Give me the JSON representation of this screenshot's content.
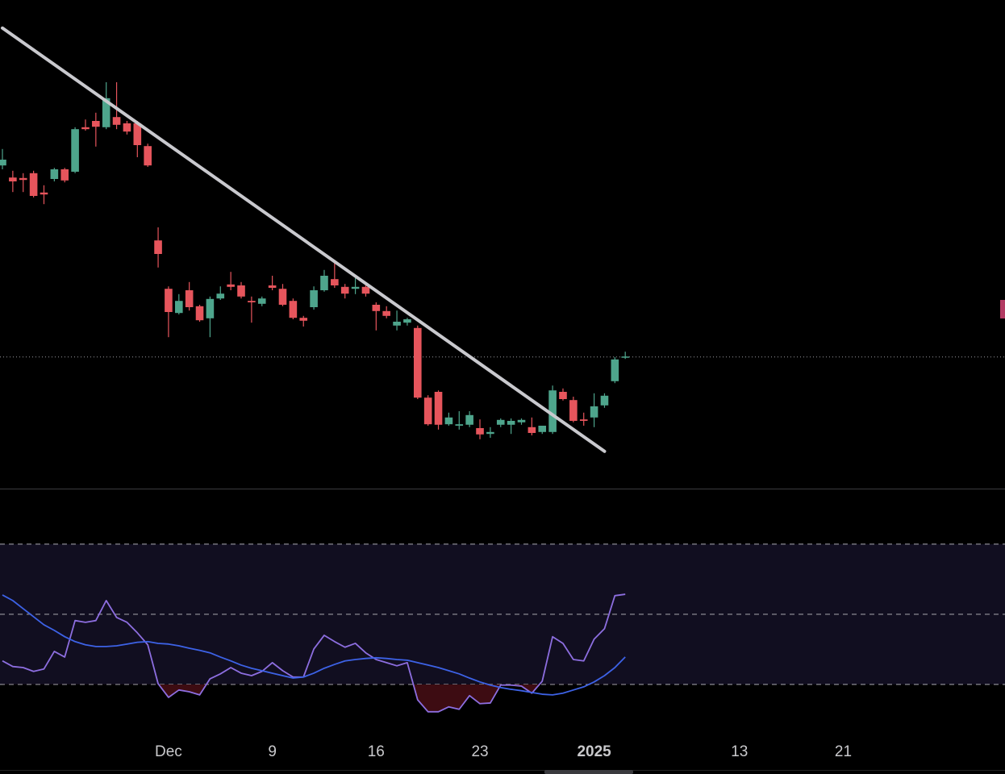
{
  "chart_data": {
    "type": "candlestick",
    "categories": [
      null,
      null,
      null,
      null,
      null,
      null,
      null,
      null,
      null,
      null,
      null,
      null,
      null,
      null,
      null,
      null,
      "Dec",
      null,
      null,
      null,
      null,
      null,
      null,
      null,
      null,
      null,
      "9",
      null,
      null,
      null,
      null,
      null,
      null,
      null,
      null,
      null,
      "16",
      null,
      null,
      null,
      null,
      null,
      null,
      null,
      null,
      null,
      "23",
      null,
      null,
      null,
      null,
      null,
      null,
      null,
      null,
      null,
      null,
      "2025",
      null,
      null,
      null,
      null,
      null,
      null,
      null,
      null,
      null,
      null,
      null,
      null,
      null,
      "13",
      null,
      null,
      null,
      null,
      null,
      null,
      null,
      null,
      null,
      "21"
    ],
    "open": [
      65.8,
      63.3,
      63.2,
      64.2,
      60.2,
      63.0,
      65.0,
      64.5,
      73.7,
      75.0,
      73.7,
      75.8,
      74.5,
      74.5,
      69.8,
      50.3,
      40.3,
      35.3,
      40.0,
      36.7,
      34.2,
      38.3,
      41.2,
      41.0,
      37.8,
      37.2,
      41.0,
      40.3,
      37.8,
      34.3,
      36.5,
      40.0,
      42.3,
      40.7,
      40.3,
      40.7,
      37.0,
      35.7,
      32.7,
      33.3,
      32.2,
      17.8,
      19.0,
      12.3,
      12.0,
      12.2,
      11.5,
      10.3,
      12.2,
      12.2,
      12.7,
      11.7,
      10.7,
      10.7,
      19.0,
      17.3,
      13.3,
      13.7,
      16.2,
      21.2,
      26.2,
      null,
      null,
      null,
      null,
      null,
      null,
      null,
      null,
      null,
      null,
      null,
      null,
      null,
      null,
      null,
      null,
      null,
      null,
      null,
      null,
      null
    ],
    "high": [
      69.2,
      64.7,
      64.2,
      64.7,
      61.7,
      65.3,
      65.3,
      73.7,
      75.3,
      76.7,
      83.0,
      83.0,
      75.0,
      75.0,
      70.3,
      53.0,
      40.8,
      39.2,
      41.7,
      37.0,
      38.7,
      40.8,
      43.8,
      41.7,
      38.7,
      38.7,
      43.0,
      41.3,
      38.3,
      34.7,
      40.8,
      44.2,
      45.8,
      41.3,
      42.5,
      41.7,
      37.5,
      36.7,
      35.8,
      34.3,
      32.7,
      18.3,
      19.3,
      14.7,
      15.0,
      15.0,
      13.3,
      11.7,
      13.5,
      13.5,
      13.5,
      13.7,
      12.0,
      20.3,
      19.7,
      18.0,
      14.7,
      18.7,
      18.7,
      26.2,
      27.3,
      null,
      null,
      null,
      null,
      null,
      null,
      null,
      null,
      null,
      null,
      null,
      null,
      null,
      null,
      null,
      null,
      null,
      null,
      null,
      null,
      null
    ],
    "low": [
      65.0,
      60.3,
      60.3,
      59.2,
      57.8,
      62.5,
      62.3,
      64.2,
      73.0,
      69.7,
      73.3,
      73.3,
      72.2,
      67.5,
      65.5,
      44.7,
      30.3,
      35.0,
      35.8,
      33.5,
      30.3,
      38.0,
      40.0,
      38.3,
      33.3,
      36.7,
      40.0,
      36.7,
      34.0,
      32.5,
      36.0,
      39.7,
      40.5,
      38.3,
      39.2,
      38.7,
      31.7,
      34.2,
      31.7,
      32.7,
      17.5,
      12.0,
      11.2,
      12.0,
      11.2,
      11.7,
      9.2,
      9.5,
      11.7,
      10.3,
      12.2,
      10.0,
      10.3,
      10.3,
      17.2,
      12.7,
      12.0,
      11.7,
      15.7,
      20.8,
      25.8,
      null,
      null,
      null,
      null,
      null,
      null,
      null,
      null,
      null,
      null,
      null,
      null,
      null,
      null,
      null,
      null,
      null,
      null,
      null,
      null,
      null
    ],
    "close": [
      67.0,
      62.5,
      62.8,
      59.5,
      59.8,
      65.0,
      62.7,
      73.3,
      73.3,
      73.8,
      79.7,
      74.2,
      72.8,
      70.0,
      65.8,
      47.5,
      35.5,
      37.8,
      36.5,
      33.8,
      38.2,
      39.3,
      40.7,
      38.7,
      37.5,
      38.3,
      40.5,
      37.0,
      34.3,
      33.7,
      40.0,
      43.0,
      41.0,
      39.3,
      40.7,
      39.3,
      35.7,
      34.7,
      33.5,
      34.0,
      17.8,
      12.3,
      12.2,
      13.7,
      12.3,
      14.2,
      10.2,
      10.7,
      13.2,
      13.0,
      13.2,
      10.5,
      12.0,
      19.3,
      17.5,
      13.0,
      13.0,
      16.0,
      18.2,
      25.7,
      26.3,
      null,
      null,
      null,
      null,
      null,
      null,
      null,
      null,
      null,
      null,
      null,
      null,
      null,
      null,
      null,
      null,
      null,
      null,
      null,
      null,
      null
    ],
    "up_color": "#4ea58c",
    "down_color": "#e6555c",
    "ylim": [
      0,
      100
    ],
    "last_price": 26.2,
    "trendline": {
      "x": [
        0,
        58
      ],
      "y": [
        94.2,
        6.7
      ],
      "color": "#c9c9ce"
    },
    "indicator": {
      "type": "line",
      "ylim": [
        5.6,
        85.6
      ],
      "levels": [
        70,
        50,
        30
      ],
      "series": [
        {
          "color": "#8d6ee0",
          "values": [
            36.7,
            35.1,
            34.8,
            33.7,
            34.4,
            39.4,
            37.8,
            48.2,
            47.7,
            48.2,
            53.9,
            49.1,
            47.7,
            44.7,
            41.3,
            30.2,
            26.3,
            28.4,
            27.9,
            27.0,
            31.6,
            33.0,
            34.8,
            33.2,
            32.5,
            33.7,
            36.2,
            33.9,
            32.1,
            32.1,
            40.1,
            44.0,
            42.2,
            40.6,
            41.7,
            39.0,
            37.1,
            36.2,
            35.3,
            36.2,
            25.6,
            22.2,
            22.2,
            23.6,
            22.9,
            26.8,
            24.5,
            24.7,
            29.8,
            29.8,
            29.5,
            27.5,
            30.9,
            43.6,
            41.7,
            37.1,
            36.7,
            42.9,
            45.9,
            55.3,
            55.7,
            null,
            null,
            null,
            null,
            null,
            null,
            null,
            null,
            null,
            null,
            null,
            null,
            null,
            null,
            null,
            null,
            null,
            null,
            null,
            null,
            null
          ]
        },
        {
          "color": "#3d62e6",
          "values": [
            55.5,
            53.9,
            51.6,
            49.3,
            47.0,
            45.4,
            43.6,
            42.2,
            41.3,
            40.8,
            40.8,
            41.0,
            41.5,
            42.0,
            42.2,
            41.7,
            41.5,
            41.0,
            40.3,
            39.7,
            39.0,
            37.8,
            36.7,
            35.5,
            34.6,
            33.9,
            33.2,
            32.5,
            31.8,
            32.1,
            33.2,
            34.6,
            35.7,
            36.7,
            37.1,
            37.4,
            37.6,
            37.4,
            37.1,
            36.9,
            36.2,
            35.5,
            34.8,
            33.9,
            33.0,
            31.8,
            30.7,
            29.8,
            29.1,
            28.6,
            28.2,
            27.7,
            27.2,
            27.0,
            27.5,
            28.4,
            29.3,
            30.7,
            32.5,
            34.8,
            37.8,
            null,
            null,
            null,
            null,
            null,
            null,
            null,
            null,
            null,
            null,
            null,
            null,
            null,
            null,
            null,
            null,
            null,
            null,
            null,
            null,
            null
          ]
        }
      ]
    }
  }
}
